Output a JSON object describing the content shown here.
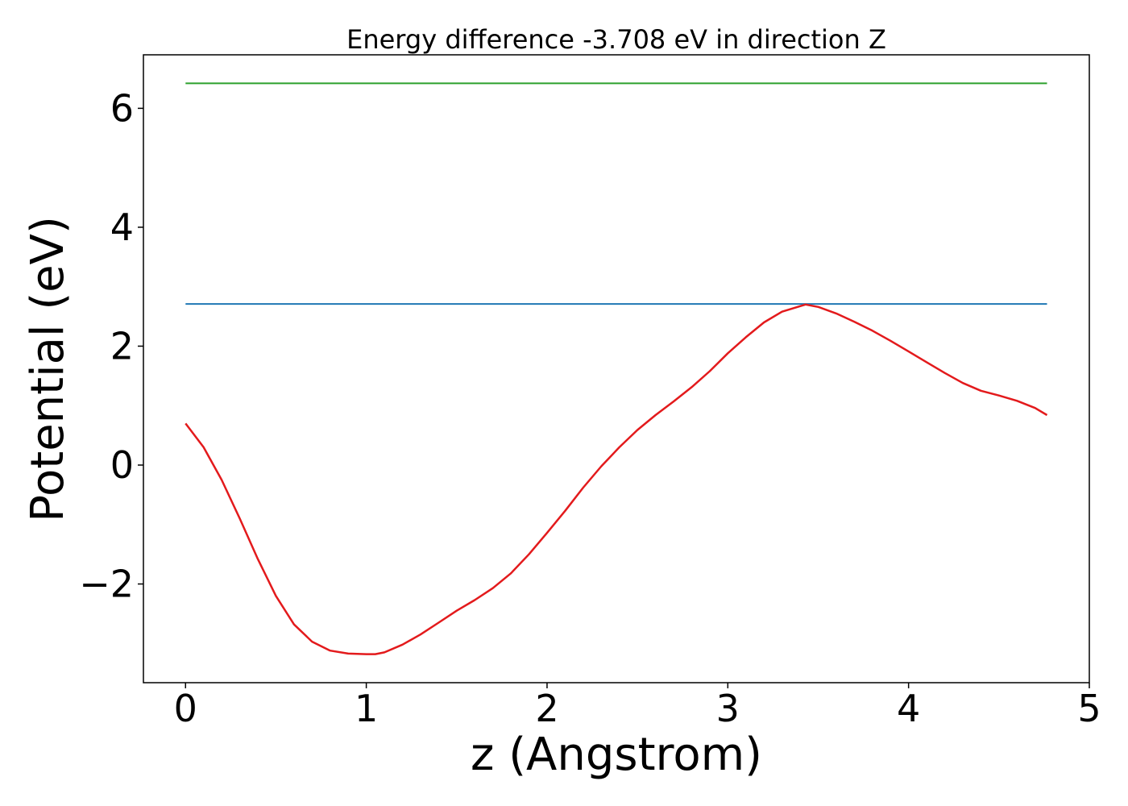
{
  "chart_data": {
    "type": "line",
    "title": "Energy difference -3.708 eV in direction Z",
    "xlabel": "z (Angstrom)",
    "ylabel": "Potential (eV)",
    "xlim": [
      -0.233,
      5.0
    ],
    "ylim": [
      -3.66,
      6.9
    ],
    "grid": false,
    "legend": "none",
    "x_ticks": [
      0,
      1,
      2,
      3,
      4,
      5
    ],
    "x_tick_labels": [
      "0",
      "1",
      "2",
      "3",
      "4",
      "5"
    ],
    "y_ticks": [
      -2,
      0,
      2,
      4,
      6
    ],
    "y_tick_labels": [
      "−2",
      "0",
      "2",
      "4",
      "6"
    ],
    "series": [
      {
        "color": "#2ca02c",
        "x": [
          0,
          4.766
        ],
        "y": [
          6.42,
          6.42
        ]
      },
      {
        "color": "#1f77b4",
        "x": [
          0,
          4.766
        ],
        "y": [
          2.71,
          2.71
        ]
      },
      {
        "color": "#e31a1c",
        "x": [
          0,
          0.1,
          0.2,
          0.3,
          0.4,
          0.5,
          0.6,
          0.7,
          0.8,
          0.9,
          1.0,
          1.05,
          1.1,
          1.2,
          1.3,
          1.4,
          1.5,
          1.6,
          1.7,
          1.8,
          1.9,
          2.0,
          2.1,
          2.2,
          2.3,
          2.4,
          2.5,
          2.6,
          2.7,
          2.8,
          2.9,
          3.0,
          3.1,
          3.2,
          3.3,
          3.43,
          3.5,
          3.6,
          3.7,
          3.8,
          3.9,
          4.0,
          4.1,
          4.2,
          4.3,
          4.4,
          4.5,
          4.6,
          4.7,
          4.766
        ],
        "y": [
          0.7,
          0.3,
          -0.25,
          -0.9,
          -1.58,
          -2.2,
          -2.68,
          -2.97,
          -3.12,
          -3.17,
          -3.18,
          -3.18,
          -3.15,
          -3.02,
          -2.85,
          -2.65,
          -2.45,
          -2.27,
          -2.07,
          -1.82,
          -1.5,
          -1.14,
          -0.77,
          -0.38,
          -0.02,
          0.3,
          0.59,
          0.84,
          1.07,
          1.31,
          1.58,
          1.88,
          2.15,
          2.4,
          2.58,
          2.7,
          2.66,
          2.55,
          2.41,
          2.26,
          2.09,
          1.91,
          1.73,
          1.55,
          1.38,
          1.25,
          1.17,
          1.08,
          0.96,
          0.84
        ]
      }
    ]
  }
}
